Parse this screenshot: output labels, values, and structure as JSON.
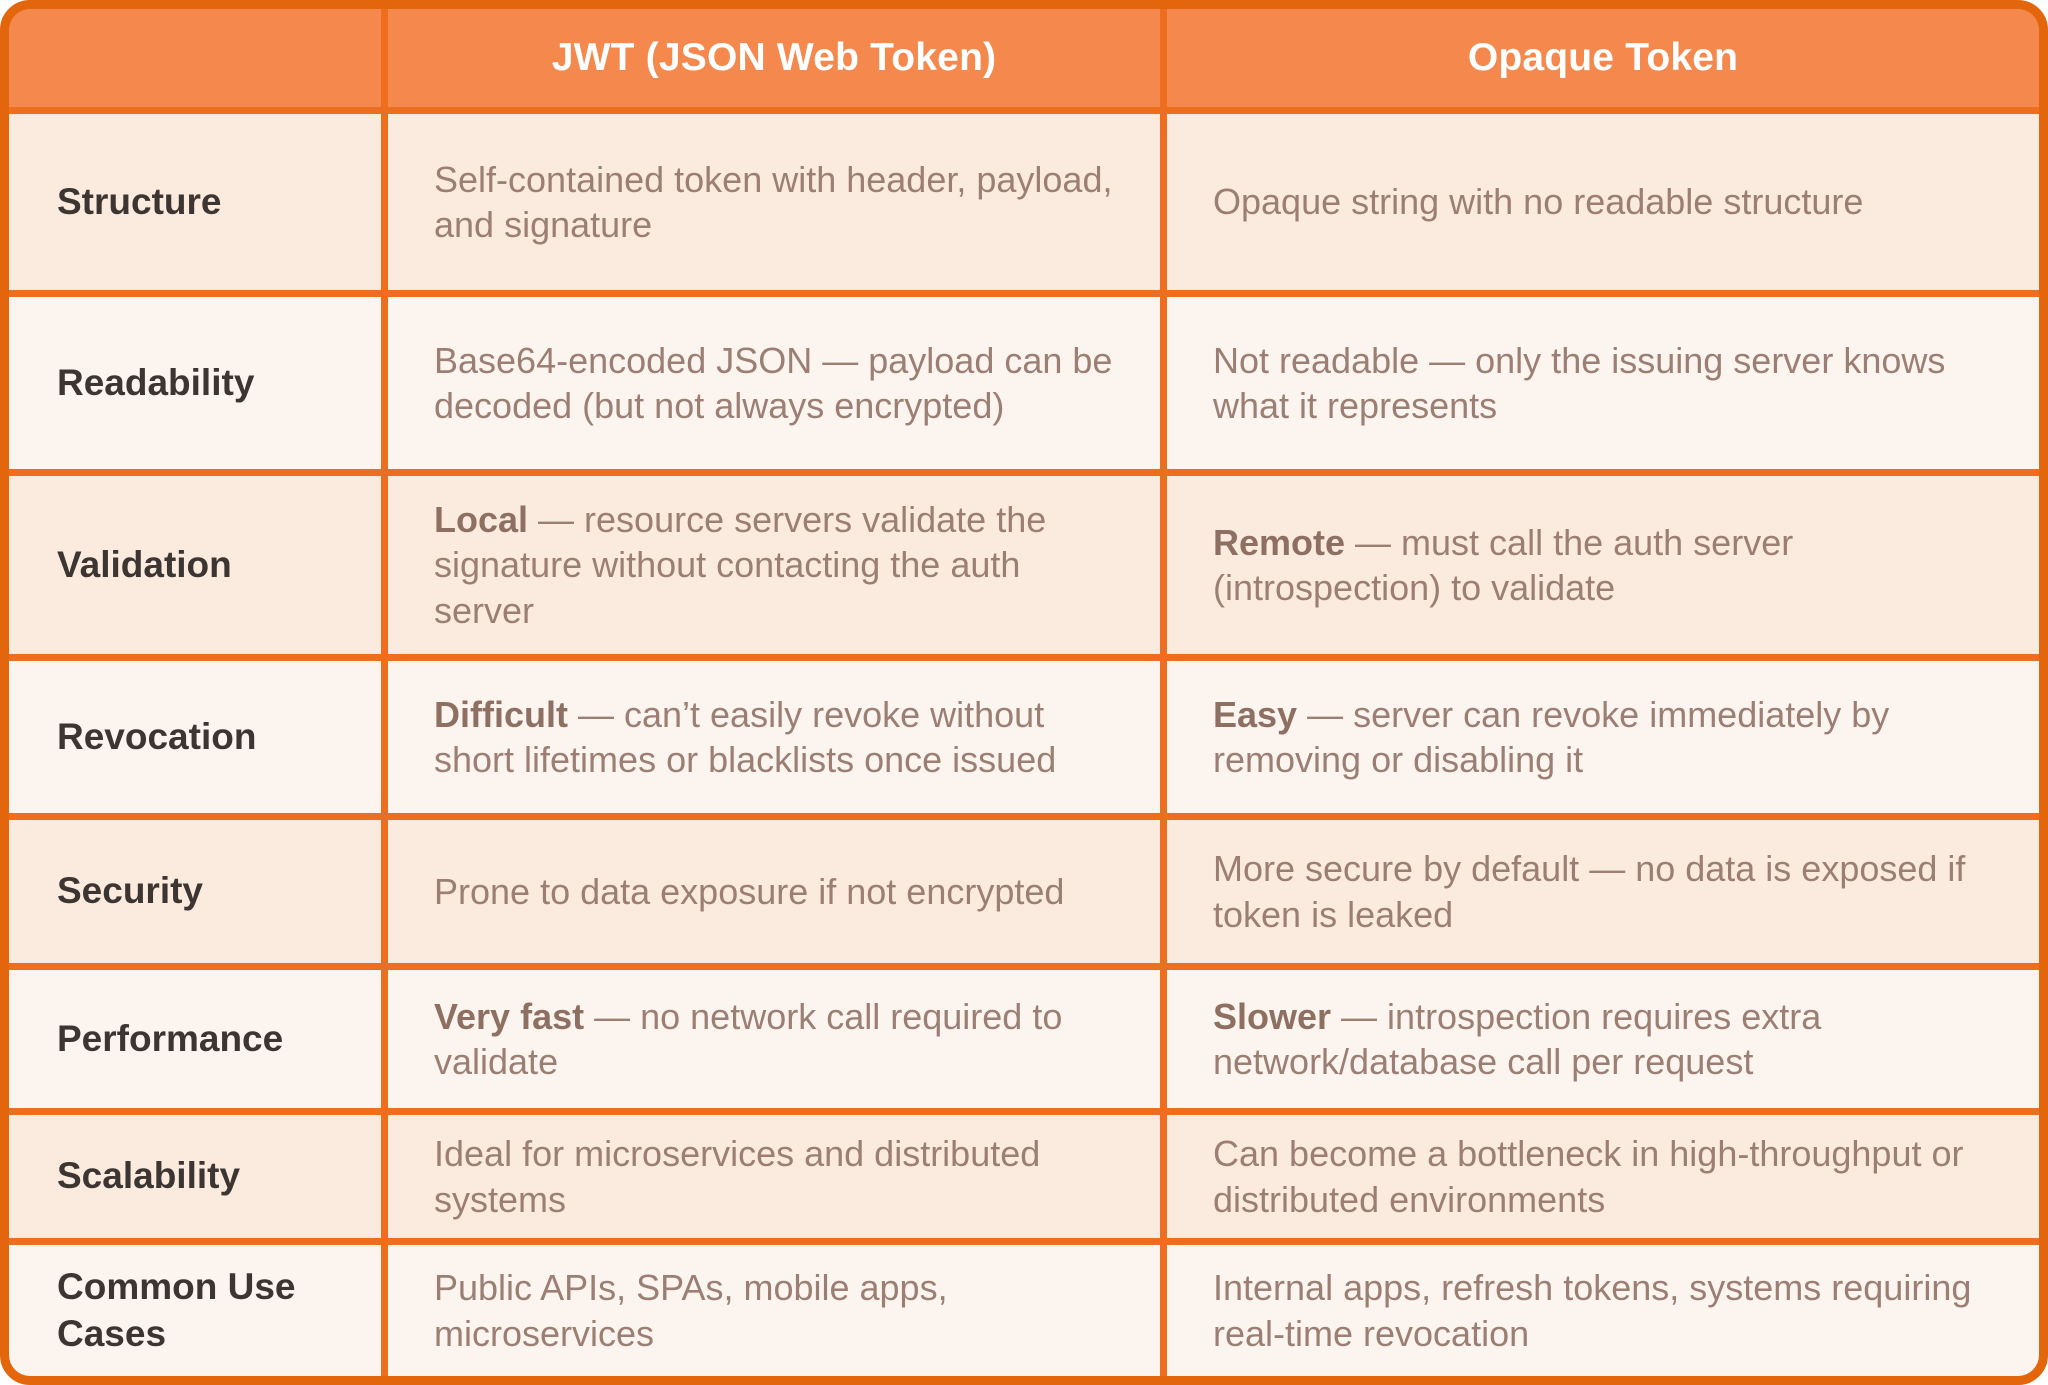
{
  "colors": {
    "header_bg": "#f5894d",
    "grid_border": "#ed6e1e",
    "outer_border": "#e4660c",
    "row_peach": "#fbebde",
    "row_cream": "#fcf5ef",
    "label_text": "#3c3531",
    "body_text": "#9c7f74",
    "lead_text": "#8e7063",
    "header_text": "#ffffff"
  },
  "chart_data": {
    "type": "table",
    "title": "",
    "columns": [
      "",
      "JWT (JSON Web Token)",
      "Opaque Token"
    ],
    "rows": [
      {
        "label": "Structure",
        "jwt": {
          "lead": "",
          "text": "Self-contained token with header, payload, and signature"
        },
        "opaque": {
          "lead": "",
          "text": "Opaque string with no readable structure"
        }
      },
      {
        "label": "Readability",
        "jwt": {
          "lead": "",
          "text": "Base64-encoded JSON — payload can be decoded (but not always encrypted)"
        },
        "opaque": {
          "lead": "",
          "text": "Not readable — only the issuing server knows what it represents"
        }
      },
      {
        "label": "Validation",
        "jwt": {
          "lead": "Local",
          "text": " — resource servers validate the signature without contacting the auth server"
        },
        "opaque": {
          "lead": "Remote",
          "text": " — must call the auth server (introspection) to validate"
        }
      },
      {
        "label": "Revocation",
        "jwt": {
          "lead": "Difficult",
          "text": " —  can’t easily revoke without short lifetimes or blacklists once issued"
        },
        "opaque": {
          "lead": "Easy",
          "text": " — server can revoke immediately by removing or disabling it"
        }
      },
      {
        "label": "Security",
        "jwt": {
          "lead": "",
          "text": "Prone to data exposure if not encrypted"
        },
        "opaque": {
          "lead": "",
          "text": "More secure by default — no data is exposed if token is leaked"
        }
      },
      {
        "label": "Performance",
        "jwt": {
          "lead": "Very fast",
          "text": " — no network call required to validate"
        },
        "opaque": {
          "lead": "Slower",
          "text": " — introspection requires extra network/database call per request"
        }
      },
      {
        "label": "Scalability",
        "jwt": {
          "lead": "",
          "text": "Ideal for microservices and distributed systems"
        },
        "opaque": {
          "lead": "",
          "text": "Can become a bottleneck in high-throughput or distributed environments"
        }
      },
      {
        "label": "Common Use Cases",
        "jwt": {
          "lead": "",
          "text": "Public APIs, SPAs, mobile apps, microservices"
        },
        "opaque": {
          "lead": "",
          "text": "Internal apps, refresh tokens, systems requiring real-time revocation"
        }
      }
    ]
  }
}
